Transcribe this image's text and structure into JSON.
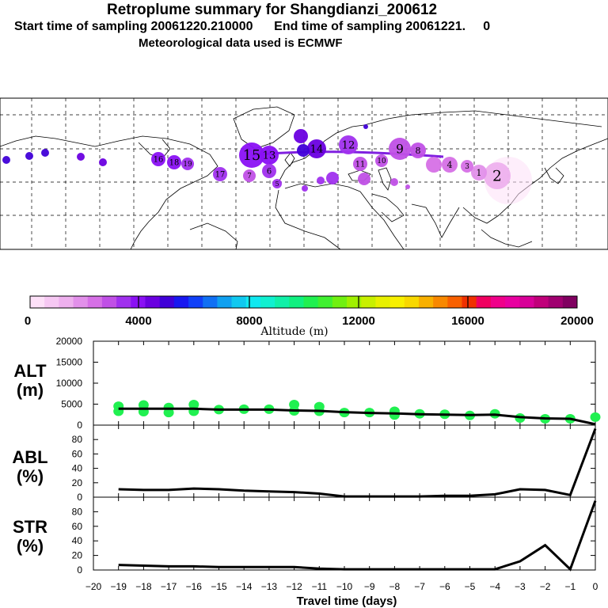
{
  "header": {
    "title": "Retroplume summary for Shangdianzi_200612",
    "line2": "Start time of sampling 20061220.210000      End time of sampling 20061221.     0",
    "line3": "Meteorological data used is ECMWF"
  },
  "colorbar": {
    "colors": [
      "#fde0f8",
      "#f6c8f3",
      "#eeb0ee",
      "#e290ea",
      "#d670e6",
      "#c050e6",
      "#a030ee",
      "#8a10f4",
      "#6a00e0",
      "#4000d8",
      "#1818f0",
      "#1040f8",
      "#1070f4",
      "#10a0f0",
      "#10c8f0",
      "#10e8f0",
      "#10f0d0",
      "#10f0a8",
      "#10f080",
      "#20f050",
      "#40f030",
      "#70f010",
      "#a0f000",
      "#c8f000",
      "#e8f000",
      "#f8f000",
      "#f8d800",
      "#f8b000",
      "#f88800",
      "#f86000",
      "#f03000",
      "#f00060",
      "#f0008a",
      "#e800a0",
      "#d80098",
      "#c0007a",
      "#a00070",
      "#800060"
    ],
    "ticks": [
      "0",
      "4000",
      "8000",
      "12000",
      "16000",
      "20000"
    ],
    "label": "Altitude (m)"
  },
  "chart_data": [
    {
      "type": "scatter",
      "title": "ALT (m)",
      "ylabel": "ALT\n(m)",
      "ylabel_line1": "ALT",
      "ylabel_line2": "(m)",
      "ylim": [
        0,
        20000
      ],
      "yticks": [
        "20000",
        "15000",
        "10000",
        "5000",
        "0"
      ],
      "line": {
        "x": [
          -19,
          -18,
          -17,
          -16,
          -15,
          -14,
          -13,
          -12,
          -11,
          -10,
          -9,
          -8,
          -7,
          -6,
          -5,
          -4,
          -3,
          -2,
          -1,
          0
        ],
        "y": [
          3900,
          3900,
          3900,
          3900,
          3700,
          3700,
          3700,
          3500,
          3400,
          3100,
          2900,
          2800,
          2600,
          2500,
          2400,
          2500,
          1900,
          1600,
          1500,
          200
        ]
      },
      "points": [
        {
          "x": -19,
          "y": 4500
        },
        {
          "x": -19,
          "y": 3300
        },
        {
          "x": -18,
          "y": 4800
        },
        {
          "x": -18,
          "y": 3200
        },
        {
          "x": -17,
          "y": 4200
        },
        {
          "x": -17,
          "y": 3000
        },
        {
          "x": -16,
          "y": 4900
        },
        {
          "x": -16,
          "y": 3300
        },
        {
          "x": -15,
          "y": 3700
        },
        {
          "x": -14,
          "y": 3800
        },
        {
          "x": -13,
          "y": 3800
        },
        {
          "x": -12,
          "y": 4900
        },
        {
          "x": -12,
          "y": 3400
        },
        {
          "x": -11,
          "y": 4400
        },
        {
          "x": -11,
          "y": 3300
        },
        {
          "x": -10,
          "y": 3000
        },
        {
          "x": -9,
          "y": 3000
        },
        {
          "x": -8,
          "y": 3300
        },
        {
          "x": -8,
          "y": 2400
        },
        {
          "x": -7,
          "y": 2700
        },
        {
          "x": -6,
          "y": 2600
        },
        {
          "x": -5,
          "y": 2300
        },
        {
          "x": -4,
          "y": 2700
        },
        {
          "x": -3,
          "y": 1700
        },
        {
          "x": -2,
          "y": 1500
        },
        {
          "x": -1,
          "y": 1500
        },
        {
          "x": 0,
          "y": 1900
        }
      ]
    },
    {
      "type": "line",
      "title": "ABL (%)",
      "ylabel_line1": "ABL",
      "ylabel_line2": "(%)",
      "ylim": [
        0,
        100
      ],
      "yticks": [
        "80",
        "60",
        "40",
        "20",
        "0"
      ],
      "x": [
        -19,
        -18,
        -17,
        -16,
        -15,
        -14,
        -13,
        -12,
        -11,
        -10,
        -9,
        -8,
        -7,
        -6,
        -5,
        -4,
        -3,
        -2,
        -1,
        0
      ],
      "y": [
        11,
        10,
        10,
        12,
        11,
        9,
        8,
        7,
        5,
        1,
        1,
        1,
        1,
        2,
        2,
        4,
        11,
        10,
        3,
        95
      ]
    },
    {
      "type": "line",
      "title": "STR (%)",
      "ylabel_line1": "STR",
      "ylabel_line2": "(%)",
      "ylim": [
        0,
        100
      ],
      "yticks": [
        "80",
        "60",
        "40",
        "20",
        "0"
      ],
      "x": [
        -19,
        -18,
        -17,
        -16,
        -15,
        -14,
        -13,
        -12,
        -11,
        -10,
        -9,
        -8,
        -7,
        -6,
        -5,
        -4,
        -3,
        -2,
        -1,
        0
      ],
      "y": [
        7,
        6,
        5,
        5,
        4,
        4,
        4,
        4,
        2,
        1,
        1,
        1,
        1,
        1,
        1,
        1,
        12,
        34,
        1,
        95
      ]
    }
  ],
  "xaxis": {
    "ticks": [
      "-20",
      "-19",
      "-18",
      "-17",
      "-16",
      "-15",
      "-14",
      "-13",
      "-12",
      "-11",
      "-10",
      "-9",
      "-8",
      "-7",
      "-6",
      "-5",
      "-4",
      "-3",
      "-2",
      "-1",
      "0"
    ],
    "label": "Travel time (days)"
  },
  "map": {
    "plume_labels": [
      "15",
      "13",
      "14",
      "12",
      "9",
      "8",
      "10",
      "11",
      "16",
      "18",
      "19",
      "17",
      "7",
      "6",
      "5",
      "4",
      "3",
      "1",
      "2"
    ]
  }
}
